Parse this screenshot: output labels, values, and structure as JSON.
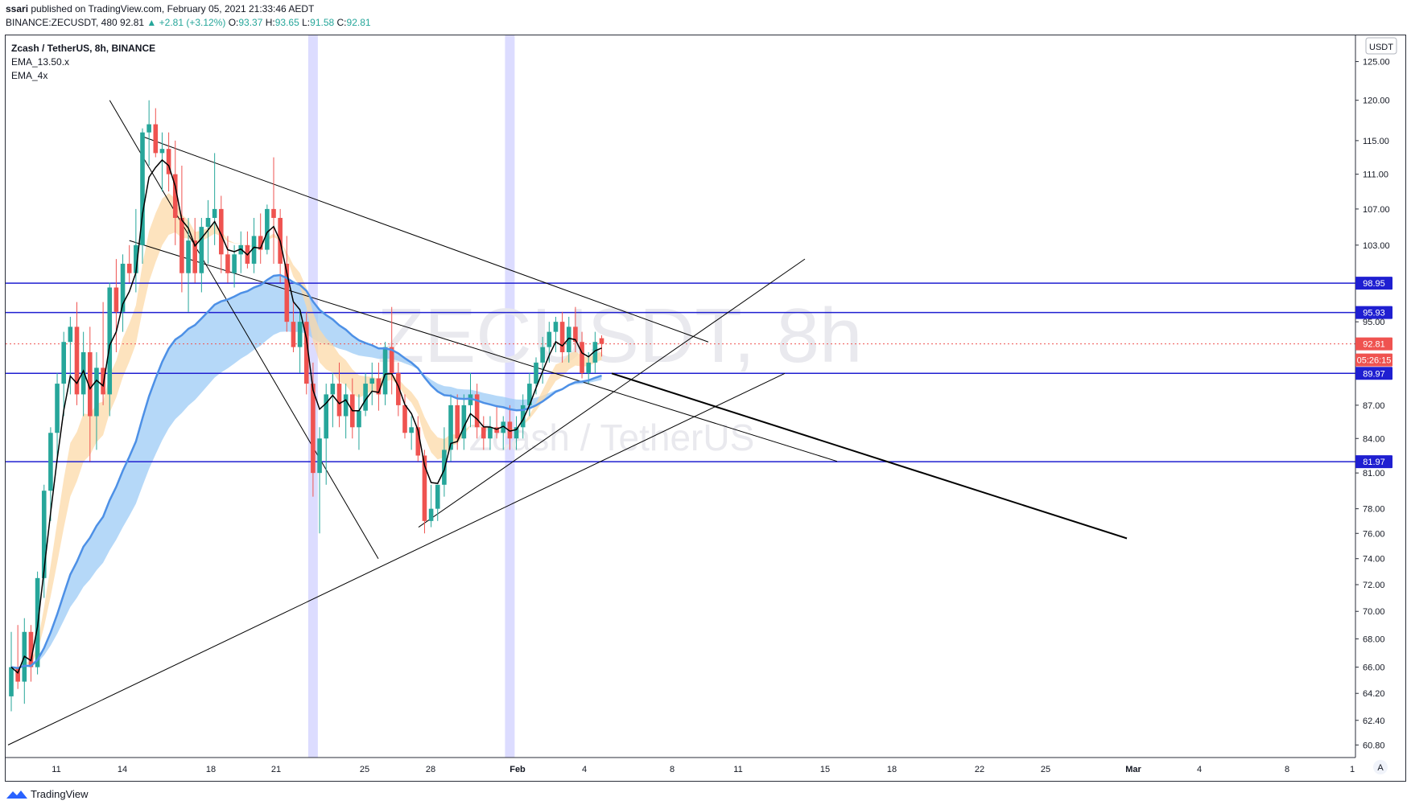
{
  "header": {
    "publisher": "ssari",
    "published_text": "published on TradingView.com, February 05, 2021 21:33:46 AEDT",
    "symbol_line": {
      "symbol": "BINANCE:ZECUSDT, 480",
      "last": "92.81",
      "change": "▲ +2.81 (+3.12%)",
      "o_label": "O:",
      "o": "93.37",
      "h_label": "H:",
      "h": "93.65",
      "l_label": "L:",
      "l": "91.58",
      "c_label": "C:",
      "c": "92.81"
    }
  },
  "legend": {
    "title": "Zcash / TetherUS, 8h, BINANCE",
    "indicators": [
      "EMA_13.50.x",
      "EMA_4x"
    ]
  },
  "watermark": {
    "ticker": "ZECUSDT, 8h",
    "name": "Zcash / TetherUS"
  },
  "currency_label": "USDT",
  "footer": {
    "brand": "TradingView"
  },
  "colors": {
    "up": "#26a69a",
    "down": "#ef5350",
    "hline": "#1f1fd1",
    "ema_fast": "#000000",
    "ema_slow": "#4d90e6",
    "band_orange": "#fcd9a8",
    "band_blue": "#9ccbf5",
    "session": "#dcdcff"
  },
  "chart_data": {
    "type": "candlestick",
    "y_scale": "log",
    "ylim": [
      60.0,
      128.5
    ],
    "y_ticks": [
      "125.00",
      "120.00",
      "115.00",
      "111.00",
      "107.00",
      "103.00",
      "95.00",
      "87.00",
      "84.00",
      "81.00",
      "78.00",
      "76.00",
      "74.00",
      "72.00",
      "70.00",
      "68.00",
      "66.00",
      "64.20",
      "62.40",
      "60.80"
    ],
    "x_labels": [
      "11",
      "14",
      "18",
      "21",
      "25",
      "28",
      "Feb",
      "4",
      "8",
      "11",
      "15",
      "18",
      "22",
      "25",
      "Mar",
      "4",
      "8",
      "1"
    ],
    "horizontal_levels": [
      98.95,
      95.93,
      89.97,
      81.97
    ],
    "last_price": {
      "value": 92.81,
      "label": "92.81",
      "countdown": "05:26:15"
    },
    "candles_ohlc": [
      [
        64.0,
        68.5,
        63.0,
        66.0
      ],
      [
        66.0,
        69.0,
        64.5,
        65.0
      ],
      [
        65.0,
        69.5,
        63.5,
        68.5
      ],
      [
        68.5,
        69.0,
        65.0,
        66.0
      ],
      [
        66.0,
        73.0,
        65.5,
        72.5
      ],
      [
        72.5,
        80.0,
        71.0,
        79.5
      ],
      [
        79.5,
        85.0,
        77.0,
        84.5
      ],
      [
        84.5,
        90.0,
        82.0,
        89.0
      ],
      [
        89.0,
        94.0,
        86.0,
        93.0
      ],
      [
        93.0,
        95.5,
        88.0,
        94.5
      ],
      [
        94.5,
        97.0,
        87.0,
        88.0
      ],
      [
        88.0,
        94.0,
        86.0,
        92.0
      ],
      [
        92.0,
        94.5,
        82.0,
        86.0
      ],
      [
        86.0,
        92.0,
        83.0,
        90.5
      ],
      [
        90.5,
        97.0,
        87.0,
        88.0
      ],
      [
        88.0,
        99.0,
        86.0,
        98.5
      ],
      [
        98.5,
        101.5,
        92.0,
        96.0
      ],
      [
        96.0,
        102.0,
        94.0,
        101.0
      ],
      [
        101.0,
        103.0,
        99.0,
        100.0
      ],
      [
        100.0,
        107.0,
        98.0,
        103.0
      ],
      [
        103.0,
        116.5,
        101.0,
        116.0
      ],
      [
        116.0,
        120.0,
        112.0,
        117.0
      ],
      [
        117.0,
        119.0,
        113.0,
        113.5
      ],
      [
        113.5,
        116.0,
        109.0,
        114.0
      ],
      [
        114.0,
        116.0,
        109.0,
        111.0
      ],
      [
        111.0,
        115.0,
        103.0,
        106.0
      ],
      [
        106.0,
        112.0,
        98.0,
        100.0
      ],
      [
        100.0,
        106.0,
        96.0,
        103.5
      ],
      [
        103.5,
        106.0,
        99.0,
        100.0
      ],
      [
        100.0,
        106.0,
        98.0,
        105.0
      ],
      [
        105.0,
        108.0,
        101.0,
        106.0
      ],
      [
        106.0,
        113.5,
        103.0,
        107.0
      ],
      [
        107.0,
        108.5,
        100.0,
        102.0
      ],
      [
        102.0,
        104.0,
        99.0,
        100.0
      ],
      [
        100.0,
        103.0,
        98.5,
        102.0
      ],
      [
        102.0,
        104.5,
        100.0,
        103.0
      ],
      [
        103.0,
        104.5,
        100.5,
        101.0
      ],
      [
        101.0,
        106.0,
        100.0,
        104.0
      ],
      [
        104.0,
        106.5,
        101.0,
        102.5
      ],
      [
        102.5,
        107.5,
        102.0,
        107.0
      ],
      [
        107.0,
        113.0,
        101.0,
        106.0
      ],
      [
        106.0,
        107.0,
        99.0,
        101.0
      ],
      [
        101.0,
        104.0,
        94.0,
        95.0
      ],
      [
        95.0,
        97.0,
        92.0,
        92.5
      ],
      [
        92.5,
        96.0,
        90.0,
        95.0
      ],
      [
        95.0,
        96.0,
        88.0,
        89.0
      ],
      [
        89.0,
        91.0,
        79.0,
        81.0
      ],
      [
        81.0,
        85.0,
        76.0,
        84.0
      ],
      [
        84.0,
        89.0,
        80.0,
        88.0
      ],
      [
        88.0,
        90.0,
        85.0,
        89.0
      ],
      [
        89.0,
        91.0,
        85.0,
        86.0
      ],
      [
        86.0,
        89.0,
        84.0,
        88.0
      ],
      [
        88.0,
        89.5,
        84.0,
        85.0
      ],
      [
        85.0,
        88.0,
        83.0,
        86.5
      ],
      [
        86.5,
        90.0,
        86.0,
        89.0
      ],
      [
        89.0,
        91.0,
        87.0,
        89.5
      ],
      [
        89.5,
        91.0,
        86.5,
        88.0
      ],
      [
        88.0,
        93.0,
        87.0,
        92.5
      ],
      [
        92.5,
        96.5,
        88.0,
        90.0
      ],
      [
        90.0,
        91.0,
        86.0,
        87.0
      ],
      [
        87.0,
        88.0,
        84.0,
        84.5
      ],
      [
        84.5,
        86.0,
        83.0,
        85.0
      ],
      [
        85.0,
        86.0,
        82.0,
        82.5
      ],
      [
        82.5,
        83.0,
        76.0,
        77.0
      ],
      [
        77.0,
        80.0,
        76.5,
        78.0
      ],
      [
        78.0,
        80.0,
        77.0,
        80.0
      ],
      [
        80.0,
        85.0,
        79.0,
        83.0
      ],
      [
        83.0,
        88.0,
        82.0,
        87.0
      ],
      [
        87.0,
        88.0,
        83.0,
        84.0
      ],
      [
        84.0,
        88.0,
        83.0,
        87.0
      ],
      [
        87.0,
        90.0,
        85.0,
        88.0
      ],
      [
        88.0,
        89.0,
        84.0,
        85.0
      ],
      [
        85.0,
        86.0,
        83.0,
        84.0
      ],
      [
        84.0,
        86.0,
        83.0,
        85.0
      ],
      [
        85.0,
        87.0,
        84.0,
        84.5
      ],
      [
        84.5,
        86.0,
        83.0,
        85.5
      ],
      [
        85.5,
        87.0,
        83.0,
        84.0
      ],
      [
        84.0,
        86.0,
        83.0,
        85.0
      ],
      [
        85.0,
        88.0,
        84.0,
        87.0
      ],
      [
        87.0,
        90.0,
        86.0,
        89.0
      ],
      [
        89.0,
        91.5,
        88.0,
        91.0
      ],
      [
        91.0,
        93.5,
        89.0,
        92.5
      ],
      [
        92.5,
        95.0,
        91.0,
        94.0
      ],
      [
        94.0,
        95.5,
        92.0,
        95.0
      ],
      [
        95.0,
        96.0,
        91.0,
        92.0
      ],
      [
        92.0,
        95.5,
        91.0,
        94.5
      ],
      [
        94.5,
        96.5,
        92.0,
        93.0
      ],
      [
        93.0,
        94.0,
        89.5,
        90.0
      ],
      [
        90.0,
        92.0,
        89.0,
        91.0
      ],
      [
        91.0,
        94.0,
        90.0,
        93.0
      ],
      [
        93.37,
        93.65,
        91.58,
        92.81
      ]
    ]
  }
}
